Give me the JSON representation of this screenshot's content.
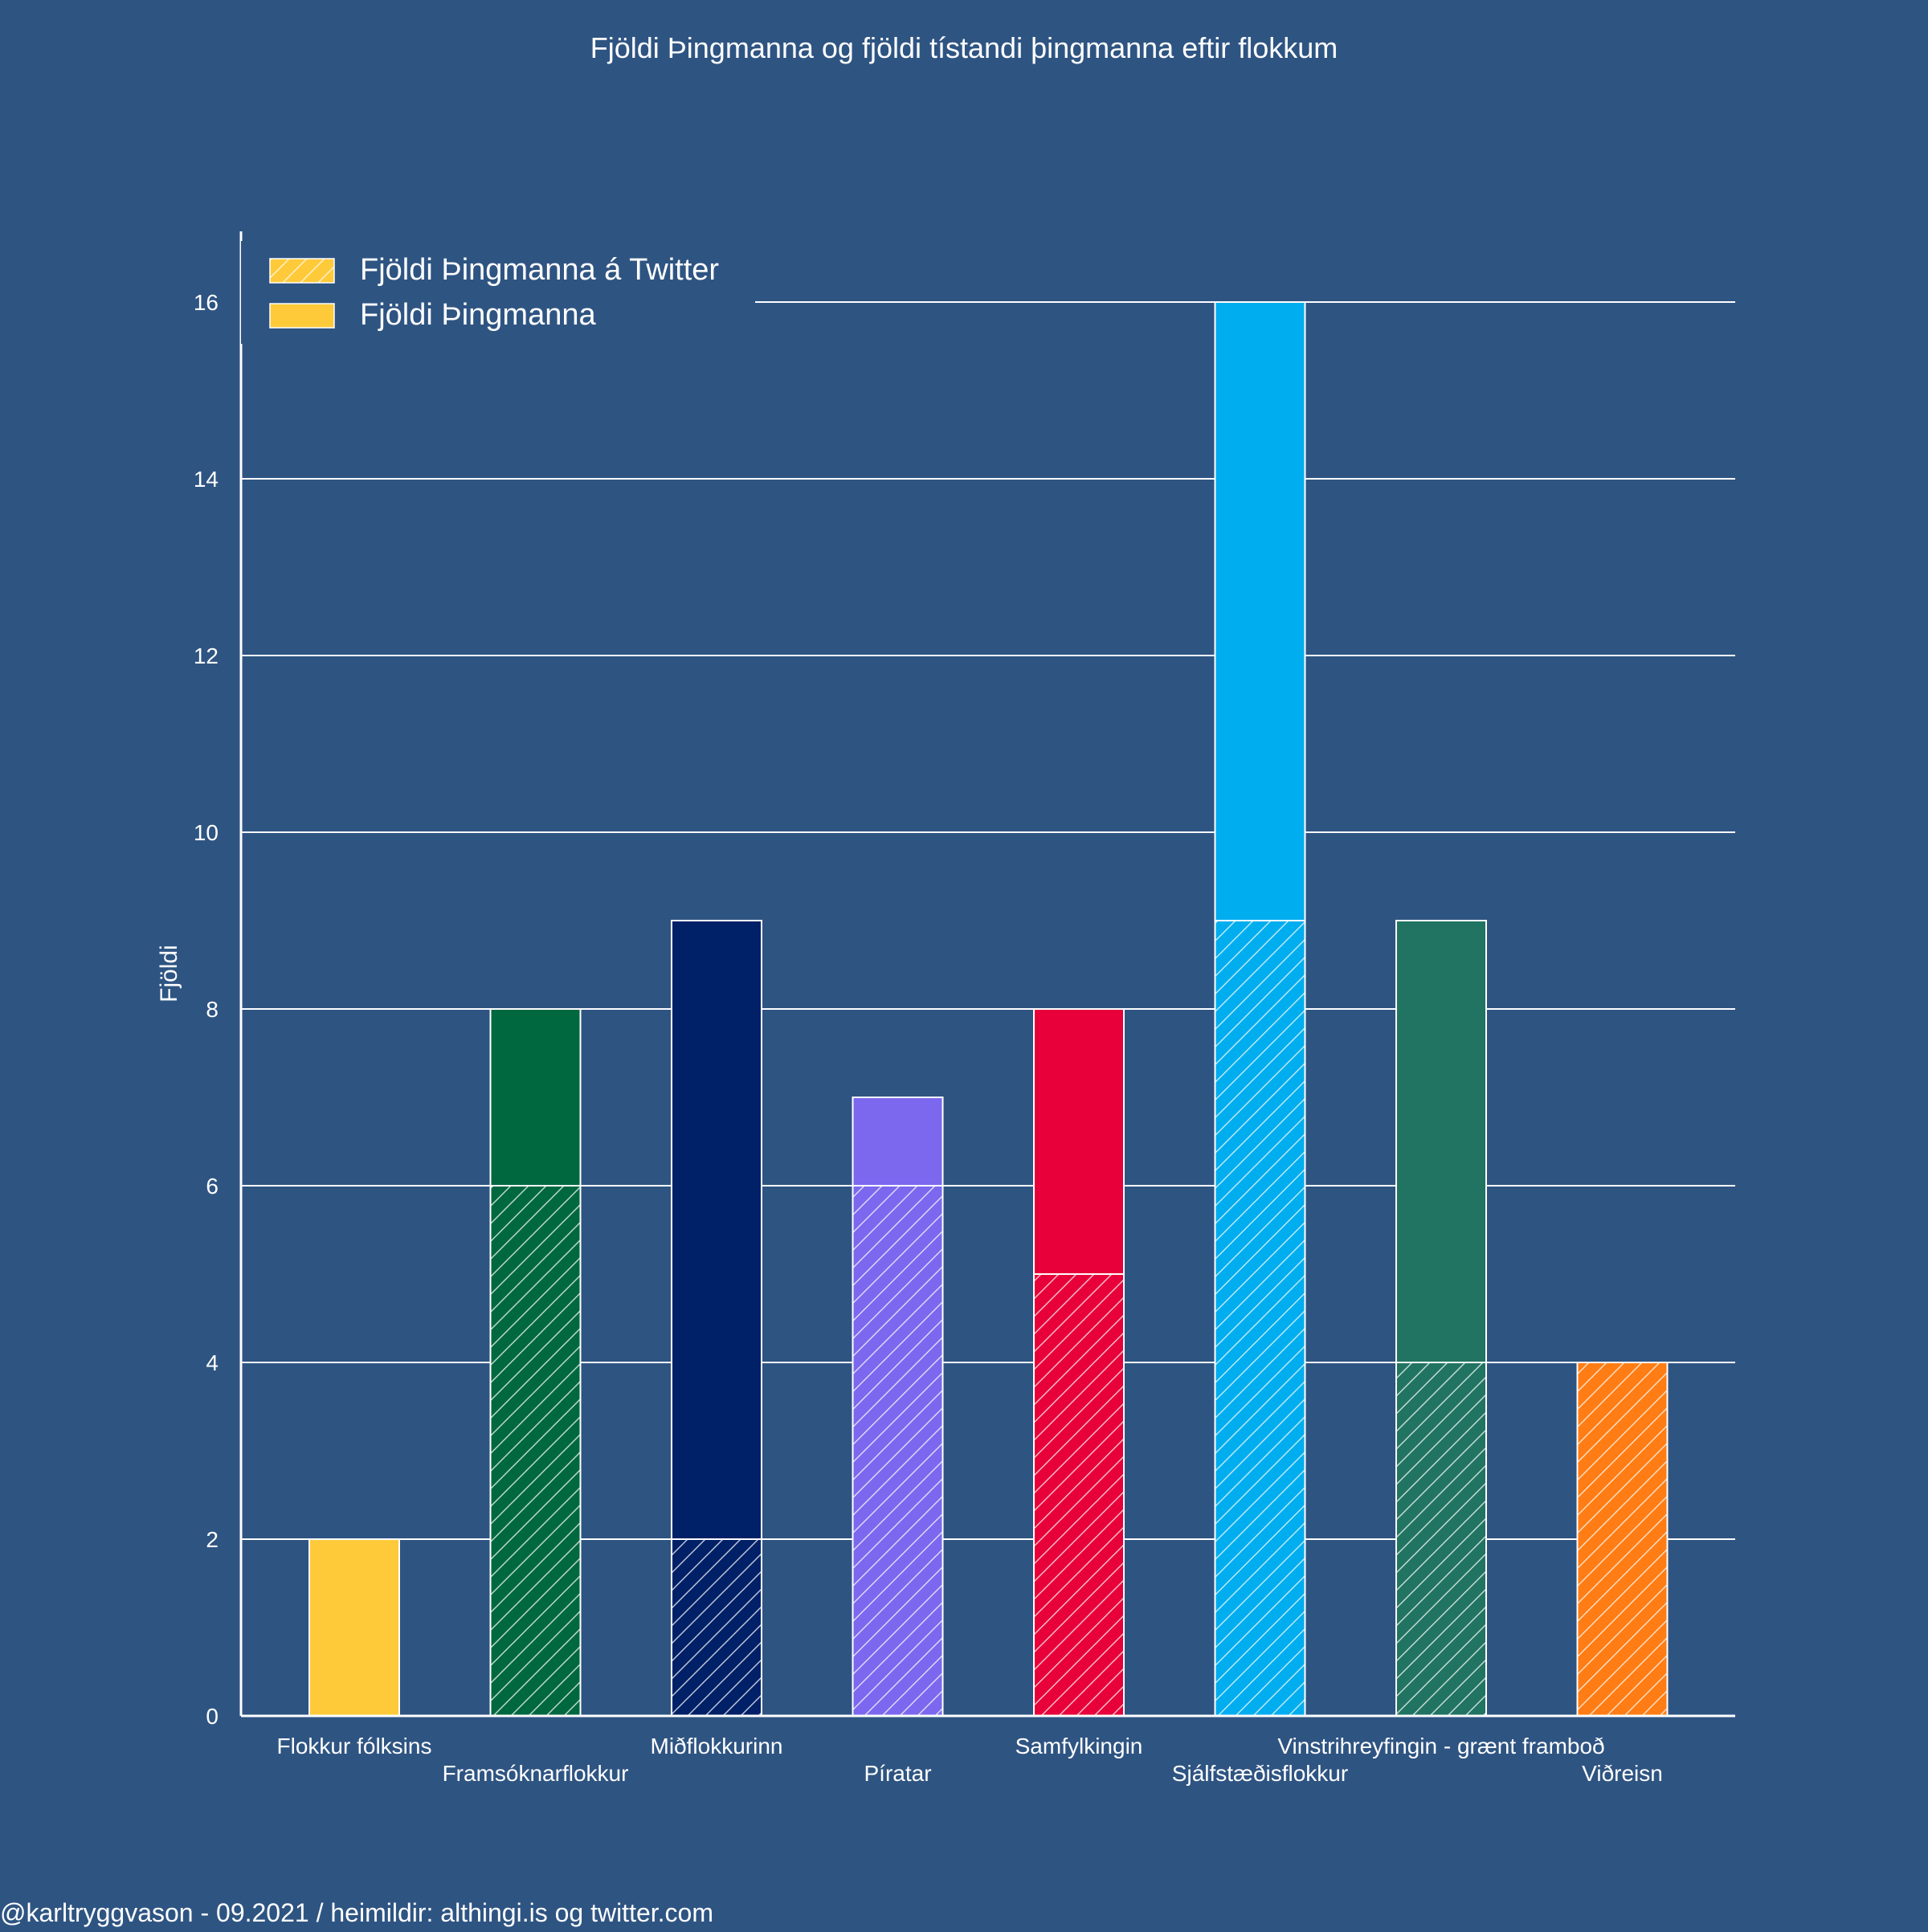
{
  "chart_data": {
    "type": "bar",
    "title": "Fjöldi Þingmanna og fjöldi tístandi þingmanna eftir flokkum",
    "xlabel": "",
    "ylabel": "Fjöldi",
    "ylim": [
      0,
      16.8
    ],
    "yticks": [
      0,
      2,
      4,
      6,
      8,
      10,
      12,
      14,
      16
    ],
    "grid": true,
    "legend_position": "top-left",
    "background_color": "#2e5482",
    "categories": [
      "Flokkur fólksins",
      "Framsóknarflokkur",
      "Miðflokkurinn",
      "Píratar",
      "Samfylkingin",
      "Sjálfstæðisflokkur",
      "Vinstrihreyfingin - grænt framboð",
      "Viðreisn"
    ],
    "colors": [
      "#ffca3a",
      "#00683f",
      "#002067",
      "#7b68ee",
      "#e8003a",
      "#00adef",
      "#217461",
      "#ff7d14"
    ],
    "series": [
      {
        "name": "Fjöldi Þingmanna á Twitter",
        "values": [
          0,
          6,
          2,
          6,
          5,
          9,
          4,
          4
        ],
        "style": "hatched"
      },
      {
        "name": "Fjöldi Þingmanna",
        "values": [
          2,
          8,
          9,
          7,
          8,
          16,
          9,
          4
        ],
        "style": "solid"
      }
    ],
    "legend": [
      {
        "label": "Fjöldi Þingmanna á Twitter",
        "swatch_color": "#ffca3a",
        "style": "hatched"
      },
      {
        "label": "Fjöldi Þingmanna",
        "swatch_color": "#ffca3a",
        "style": "solid"
      }
    ],
    "footer": "@karltryggvason - 09.2021 / heimildir: althingi.is og twitter.com"
  }
}
